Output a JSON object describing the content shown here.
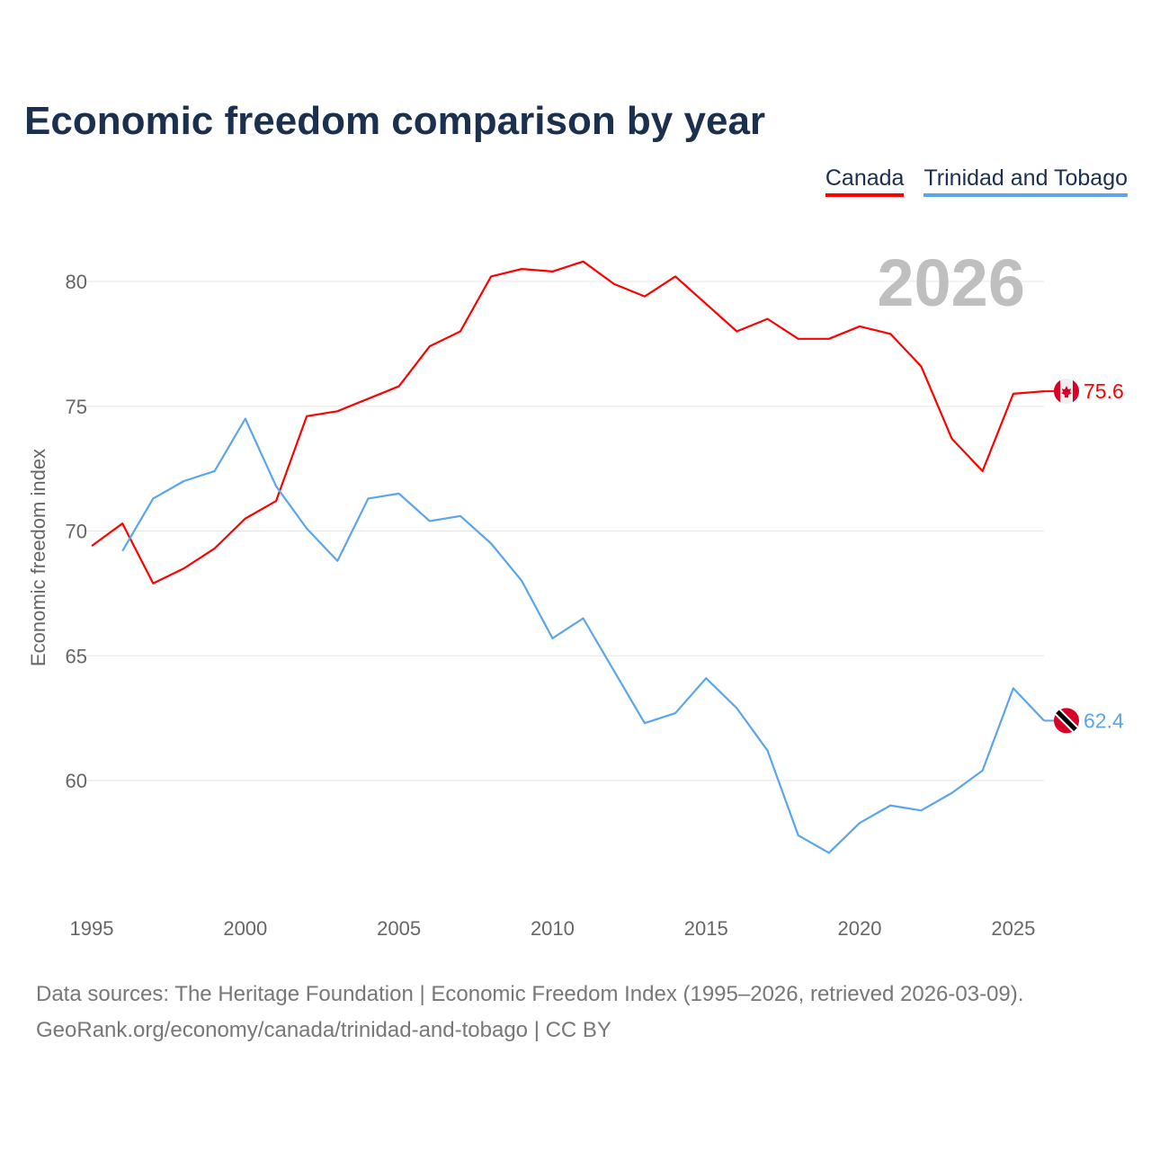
{
  "chart_data": {
    "type": "line",
    "title": "Economic freedom comparison by year",
    "xlabel": "",
    "ylabel": "Economic freedom index",
    "xlim": [
      1995,
      2026
    ],
    "ylim": [
      56,
      82
    ],
    "yticks": [
      60,
      65,
      70,
      75,
      80
    ],
    "xticks": [
      1995,
      2000,
      2005,
      2010,
      2015,
      2020,
      2025
    ],
    "grid": true,
    "legend_position": "top-right",
    "year_watermark": "2026",
    "series": [
      {
        "name": "Canada",
        "color": "#ff0000",
        "end_label": "75.6",
        "x": [
          1995,
          1996,
          1997,
          1998,
          1999,
          2000,
          2001,
          2002,
          2003,
          2004,
          2005,
          2006,
          2007,
          2008,
          2009,
          2010,
          2011,
          2012,
          2013,
          2014,
          2015,
          2016,
          2017,
          2018,
          2019,
          2020,
          2021,
          2022,
          2023,
          2024,
          2025,
          2026
        ],
        "values": [
          69.4,
          70.3,
          67.9,
          68.5,
          69.3,
          70.5,
          71.2,
          74.6,
          74.8,
          75.3,
          75.8,
          77.4,
          78.0,
          80.2,
          80.5,
          80.4,
          80.8,
          79.9,
          79.4,
          80.2,
          79.1,
          78.0,
          78.5,
          77.7,
          77.7,
          78.2,
          77.9,
          76.6,
          73.7,
          72.4,
          75.5,
          75.6
        ]
      },
      {
        "name": "Trinidad and Tobago",
        "color": "#5aa5eb",
        "end_label": "62.4",
        "x": [
          1996,
          1997,
          1998,
          1999,
          2000,
          2001,
          2002,
          2003,
          2004,
          2005,
          2006,
          2007,
          2008,
          2009,
          2010,
          2011,
          2012,
          2013,
          2014,
          2015,
          2016,
          2017,
          2018,
          2019,
          2020,
          2021,
          2022,
          2023,
          2024,
          2025,
          2026
        ],
        "values": [
          69.2,
          71.3,
          72.0,
          72.4,
          74.5,
          71.8,
          70.1,
          68.8,
          71.3,
          71.5,
          70.4,
          70.6,
          69.5,
          68.0,
          65.7,
          66.5,
          64.4,
          62.3,
          62.7,
          64.1,
          62.9,
          61.2,
          57.8,
          57.1,
          58.3,
          59.0,
          58.8,
          59.5,
          60.4,
          63.7,
          62.4
        ]
      }
    ]
  },
  "footer": {
    "line1": "Data sources: The Heritage Foundation | Economic Freedom Index (1995–2026, retrieved 2026-03-09).",
    "line2": "GeoRank.org/economy/canada/trinidad-and-tobago | CC BY"
  }
}
